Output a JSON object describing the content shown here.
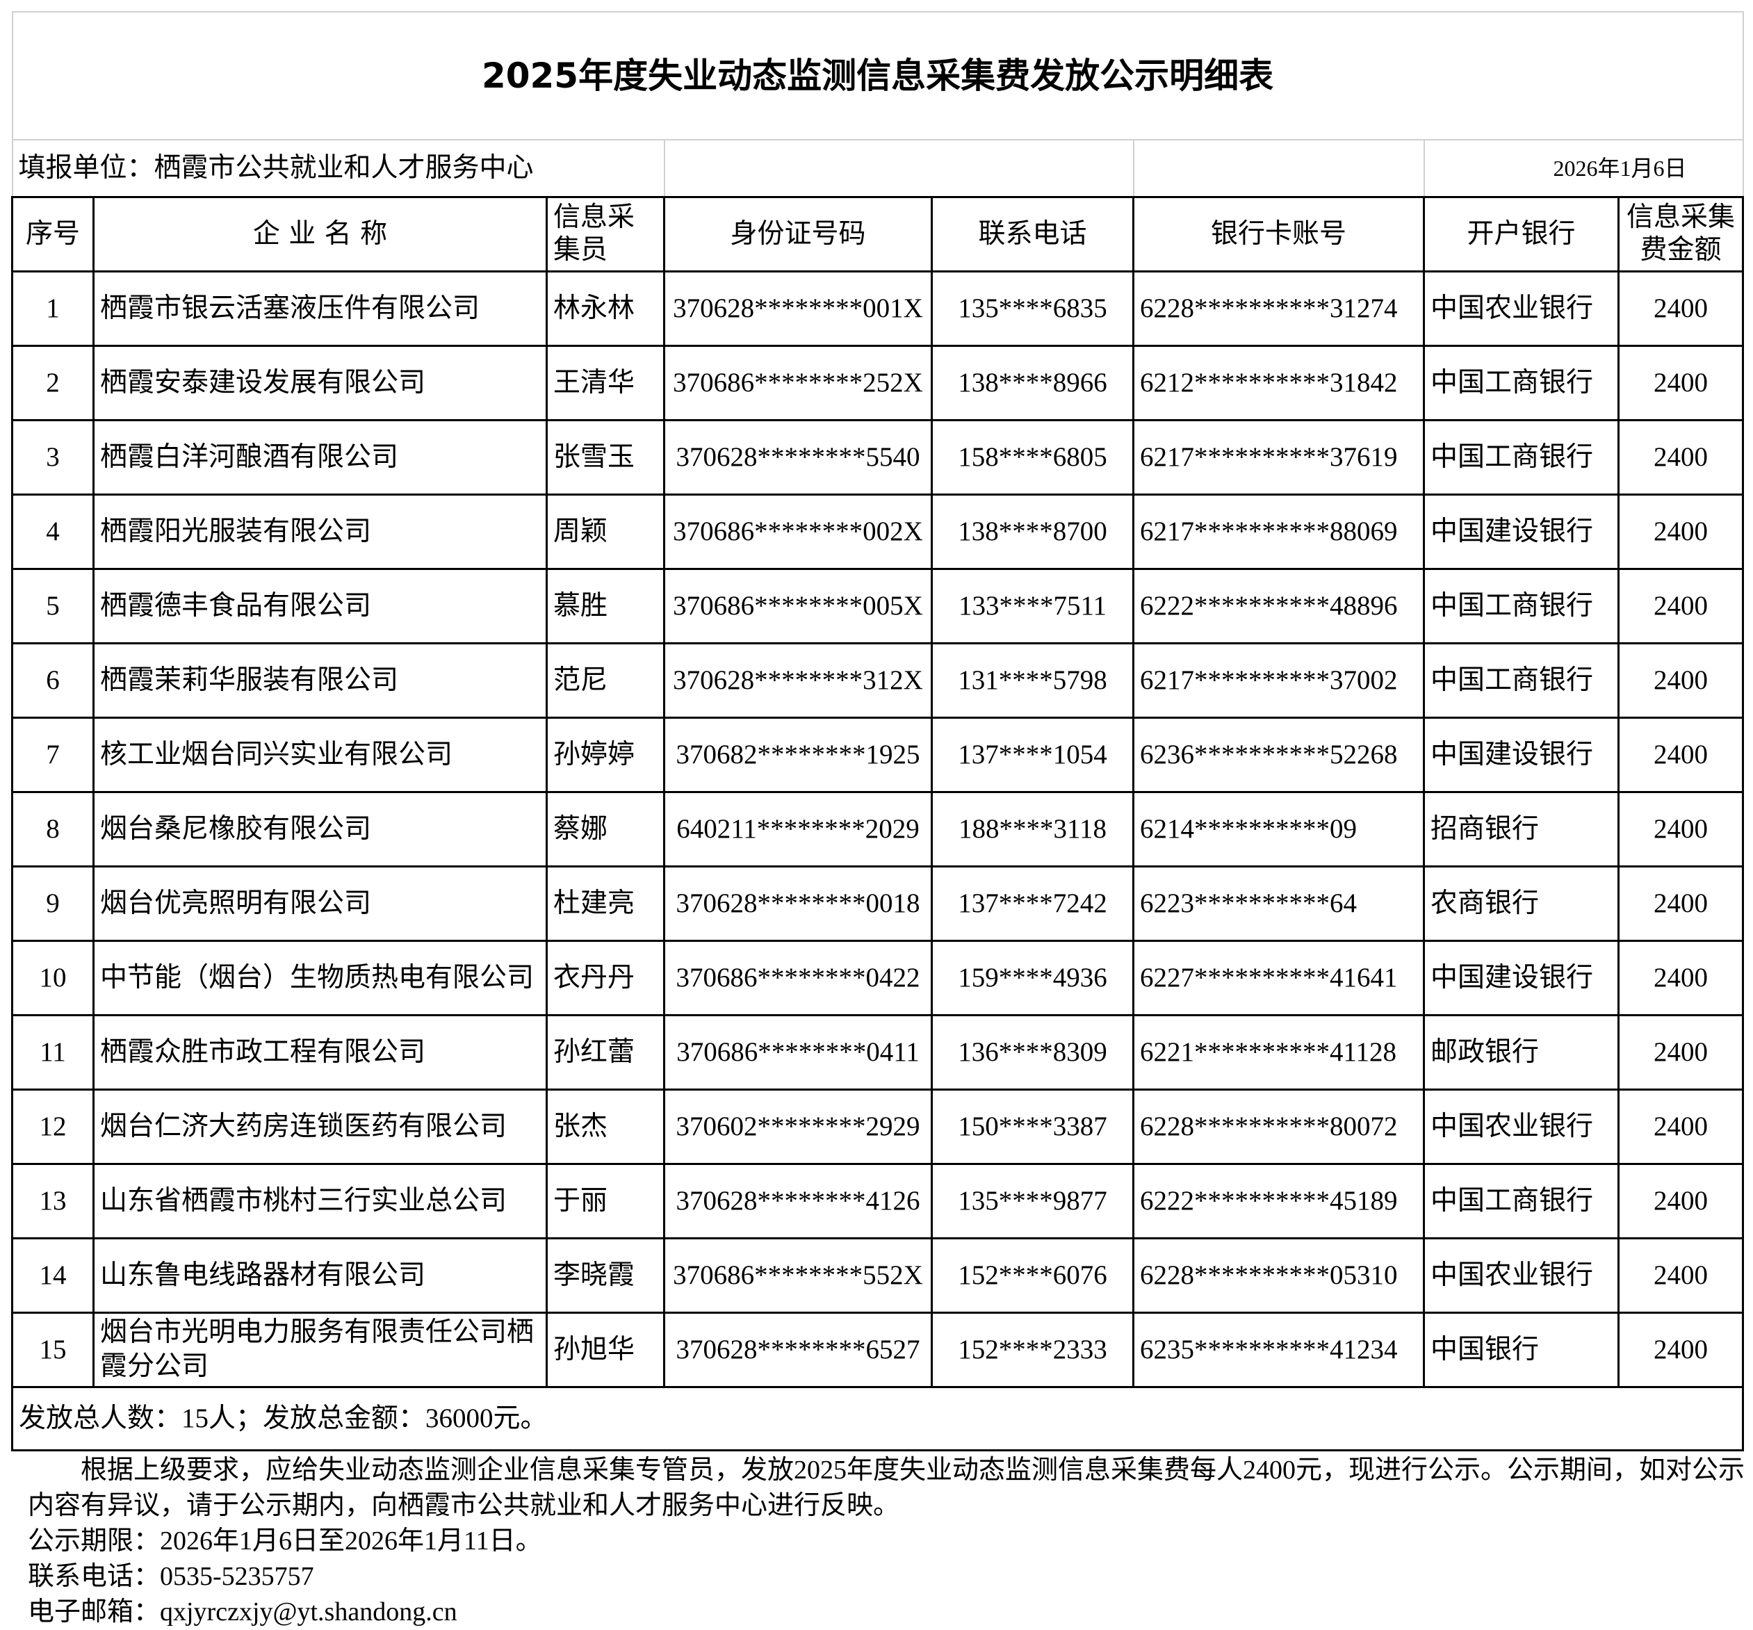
{
  "header": {
    "title": "2025年度失业动态监测信息采集费发放公示明细表"
  },
  "info": {
    "unit": "填报单位：栖霞市公共就业和人才服务中心",
    "date": "2026年1月6日"
  },
  "table": {
    "columns": [
      "序号",
      "企 业 名 称",
      "信息采集员",
      "身份证号码",
      "联系电话",
      "银行卡账号",
      "开户银行",
      "信息采集费金额"
    ],
    "rows": [
      [
        "1",
        "栖霞市银云活塞液压件有限公司",
        "林永林",
        "370628********001X",
        "135****6835",
        "6228**********31274",
        "中国农业银行",
        "2400"
      ],
      [
        "2",
        "栖霞安泰建设发展有限公司",
        "王清华",
        "370686********252X",
        "138****8966",
        "6212**********31842",
        "中国工商银行",
        "2400"
      ],
      [
        "3",
        "栖霞白洋河酿酒有限公司",
        "张雪玉",
        "370628********5540",
        "158****6805",
        "6217**********37619",
        "中国工商银行",
        "2400"
      ],
      [
        "4",
        "栖霞阳光服装有限公司",
        "周颖",
        "370686********002X",
        "138****8700",
        "6217**********88069",
        "中国建设银行",
        "2400"
      ],
      [
        "5",
        "栖霞德丰食品有限公司",
        "慕胜",
        "370686********005X",
        "133****7511",
        "6222**********48896",
        "中国工商银行",
        "2400"
      ],
      [
        "6",
        "栖霞茉莉华服装有限公司",
        "范尼",
        "370628********312X",
        "131****5798",
        "6217**********37002",
        "中国工商银行",
        "2400"
      ],
      [
        "7",
        "核工业烟台同兴实业有限公司",
        "孙婷婷",
        "370682********1925",
        "137****1054",
        "6236**********52268",
        "中国建设银行",
        "2400"
      ],
      [
        "8",
        "烟台桑尼橡胶有限公司",
        "蔡娜",
        "640211********2029",
        "188****3118",
        "6214**********09",
        "招商银行",
        "2400"
      ],
      [
        "9",
        "烟台优亮照明有限公司",
        "杜建亮",
        "370628********0018",
        "137****7242",
        "6223**********64",
        "农商银行",
        "2400"
      ],
      [
        "10",
        "中节能（烟台）生物质热电有限公司",
        "衣丹丹",
        "370686********0422",
        "159****4936",
        "6227**********41641",
        "中国建设银行",
        "2400"
      ],
      [
        "11",
        "栖霞众胜市政工程有限公司",
        "孙红蕾",
        "370686********0411",
        "136****8309",
        "6221**********41128",
        "邮政银行",
        "2400"
      ],
      [
        "12",
        "烟台仁济大药房连锁医药有限公司",
        "张杰",
        "370602********2929",
        "150****3387",
        "6228**********80072",
        "中国农业银行",
        "2400"
      ],
      [
        "13",
        "山东省栖霞市桃村三行实业总公司",
        "于丽",
        "370628********4126",
        "135****9877",
        "6222**********45189",
        "中国工商银行",
        "2400"
      ],
      [
        "14",
        "山东鲁电线路器材有限公司",
        "李晓霞",
        "370686********552X",
        "152****6076",
        "6228**********05310",
        "中国农业银行",
        "2400"
      ],
      [
        "15",
        "烟台市光明电力服务有限责任公司栖霞分公司",
        "孙旭华",
        "370628********6527",
        "152****2333",
        "6235**********41234",
        "中国银行",
        "2400"
      ]
    ],
    "summary": "发放总人数：15人；发放总金额：36000元。"
  },
  "notes": [
    "根据上级要求，应给失业动态监测企业信息采集专管员，发放2025年度失业动态监测信息采集费每人2400元，现进行公示。公示期间，如对公示内容有异议，请于公示期内，向栖霞市公共就业和人才服务中心进行反映。",
    "公示期限：2026年1月6日至2026年1月11日。",
    "联系电话：0535-5235757",
    "电子邮箱：qxjyrczxjy@yt.shandong.cn"
  ]
}
